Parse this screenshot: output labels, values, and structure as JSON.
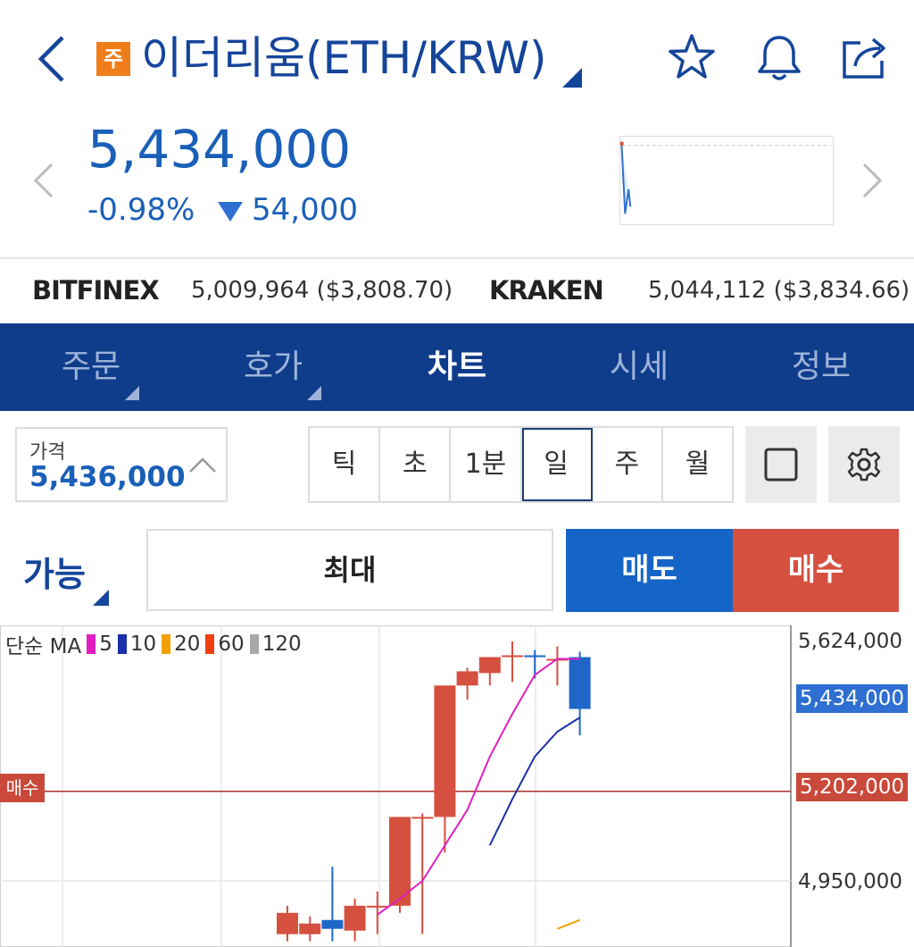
{
  "header": {
    "badge": "주",
    "title": "이더리움(ETH/KRW)"
  },
  "price": {
    "current": "5,434,000",
    "change_pct": "-0.98%",
    "change_val": "54,000"
  },
  "exchanges": [
    {
      "name": "BITFINEX",
      "value": "5,009,964 ($3,808.70)"
    },
    {
      "name": "KRAKEN",
      "value": "5,044,112 ($3,834.66)"
    }
  ],
  "tabs": [
    "주문",
    "호가",
    "차트",
    "시세",
    "정보"
  ],
  "active_tab": "차트",
  "pricebox": {
    "label": "가격",
    "value": "5,436,000"
  },
  "periods": [
    "틱",
    "초",
    "1분",
    "일",
    "주",
    "월"
  ],
  "active_period": "일",
  "order": {
    "avail": "가능",
    "max": "최대",
    "sell": "매도",
    "buy": "매수"
  },
  "chart_data": {
    "type": "candlestick",
    "legend": {
      "prefix": "단순 MA",
      "items": [
        {
          "label": "5",
          "color": "#e01ec0"
        },
        {
          "label": "10",
          "color": "#1c2fa8"
        },
        {
          "label": "20",
          "color": "#f0a000"
        },
        {
          "label": "60",
          "color": "#f04010"
        },
        {
          "label": "120",
          "color": "#a8a8a8"
        }
      ]
    },
    "y_ticks": [
      5624000,
      4950000
    ],
    "y_tick_labels": [
      "5,624,000",
      "4,950,000"
    ],
    "current_price": 5434000,
    "current_label": "5,434,000",
    "buy_line": 5202000,
    "buy_line_label": "5,202,000",
    "buy_tag": "매수",
    "ylim": [
      4780000,
      5680000
    ],
    "candles": [
      {
        "o": 4800000,
        "h": 4880000,
        "l": 4780000,
        "c": 4860000
      },
      {
        "o": 4800000,
        "h": 4850000,
        "l": 4780000,
        "c": 4830000
      },
      {
        "o": 4840000,
        "h": 4990000,
        "l": 4780000,
        "c": 4815000
      },
      {
        "o": 4810000,
        "h": 4900000,
        "l": 4780000,
        "c": 4880000
      },
      {
        "o": 4880000,
        "h": 4920000,
        "l": 4800000,
        "c": 4880000
      },
      {
        "o": 4880000,
        "h": 5130000,
        "l": 4860000,
        "c": 5130000
      },
      {
        "o": 5130000,
        "h": 5140000,
        "l": 4800000,
        "c": 5130000
      },
      {
        "o": 5130000,
        "h": 5500000,
        "l": 5030000,
        "c": 5500000
      },
      {
        "o": 5500000,
        "h": 5550000,
        "l": 5460000,
        "c": 5540000
      },
      {
        "o": 5535000,
        "h": 5580000,
        "l": 5500000,
        "c": 5580000
      },
      {
        "o": 5585000,
        "h": 5624000,
        "l": 5510000,
        "c": 5585000
      },
      {
        "o": 5585000,
        "h": 5600000,
        "l": 5520000,
        "c": 5580000
      },
      {
        "o": 5575000,
        "h": 5610000,
        "l": 5500000,
        "c": 5575000
      },
      {
        "o": 5580000,
        "h": 5595000,
        "l": 5360000,
        "c": 5434000
      }
    ],
    "ma5": [
      null,
      null,
      null,
      null,
      4855000,
      4900000,
      4950000,
      5050000,
      5150000,
      5300000,
      5420000,
      5530000,
      5575000,
      5575000
    ],
    "ma10": [
      null,
      null,
      null,
      null,
      null,
      null,
      null,
      null,
      null,
      5050000,
      5180000,
      5300000,
      5370000,
      5410000
    ],
    "ma20": [
      null,
      null,
      null,
      null,
      null,
      null,
      null,
      null,
      null,
      null,
      null,
      null,
      4815000,
      4840000
    ]
  }
}
